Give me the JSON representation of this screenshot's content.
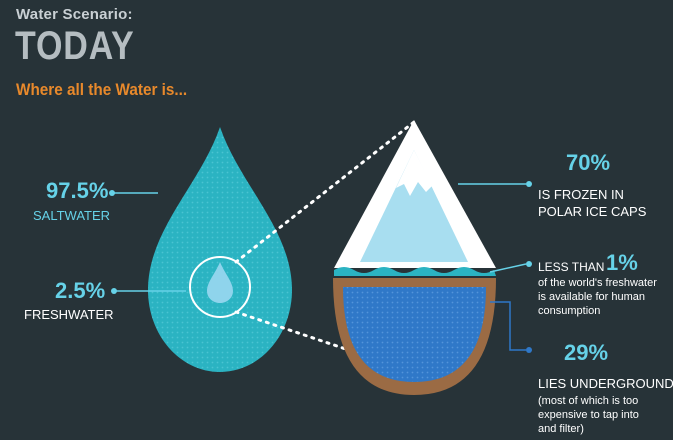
{
  "header": {
    "eyebrow": "Water Scenario:",
    "title": "TODAY",
    "subtitle": "Where all the Water is..."
  },
  "drop": {
    "salt_pct": "97.5%",
    "salt_label": "SALTWATER",
    "fresh_pct": "2.5%",
    "fresh_label": "FRESHWATER"
  },
  "breakdown": {
    "ice_pct": "70%",
    "ice_line1": "IS FROZEN IN",
    "ice_line2": "POLAR ICE CAPS",
    "less_than": "LESS THAN",
    "one_pct": "1%",
    "consumption_text": "of the world's freshwater is available for human consumption",
    "ground_pct": "29%",
    "ground_label": "LIES UNDERGROUND",
    "ground_note": "(most of which is too expensive to tap into and filter)"
  },
  "chart_data": {
    "type": "diagram",
    "composition": [
      {
        "label": "SALTWATER",
        "value": 97.5
      },
      {
        "label": "FRESHWATER",
        "value": 2.5
      }
    ],
    "freshwater_breakdown": [
      {
        "label": "IS FROZEN IN POLAR ICE CAPS",
        "value": 70
      },
      {
        "label": "LIES UNDERGROUND",
        "value": 29
      },
      {
        "label": "available for human consumption",
        "value": "less than 1"
      }
    ]
  },
  "colors": {
    "background": "#273338",
    "drop": "#2bb3c2",
    "accent_text": "#66d2e8",
    "subtitle": "#e8892b",
    "ice": "#a8def0",
    "underground_water": "#2f78c8",
    "soil": "#9b6b44"
  }
}
